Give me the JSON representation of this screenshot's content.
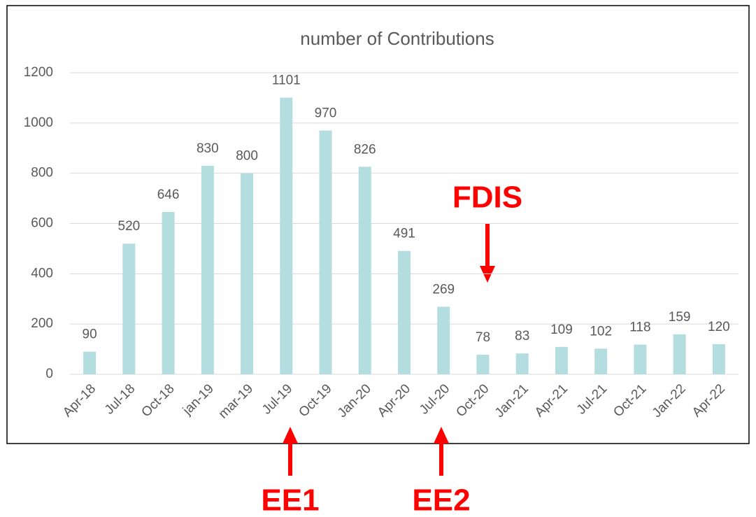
{
  "chart_data": {
    "type": "bar",
    "title": "number of Contributions",
    "categories": [
      "Apr-18",
      "Jul-18",
      "Oct-18",
      "jan-19",
      "mar-19",
      "Jul-19",
      "Oct-19",
      "Jan-20",
      "Apr-20",
      "Jul-20",
      "Oct-20",
      "Jan-21",
      "Apr-21",
      "Jul-21",
      "Oct-21",
      "Jan-22",
      "Apr-22"
    ],
    "values": [
      90,
      520,
      646,
      830,
      800,
      1101,
      970,
      826,
      491,
      269,
      78,
      83,
      109,
      102,
      118,
      159,
      120
    ],
    "color": "#b4dde0",
    "ylim": [
      0,
      1200
    ],
    "yticks": [
      0,
      200,
      400,
      600,
      800,
      1000,
      1200
    ],
    "grid": true,
    "annotations": [
      "FDIS",
      "EE1",
      "EE2"
    ]
  }
}
